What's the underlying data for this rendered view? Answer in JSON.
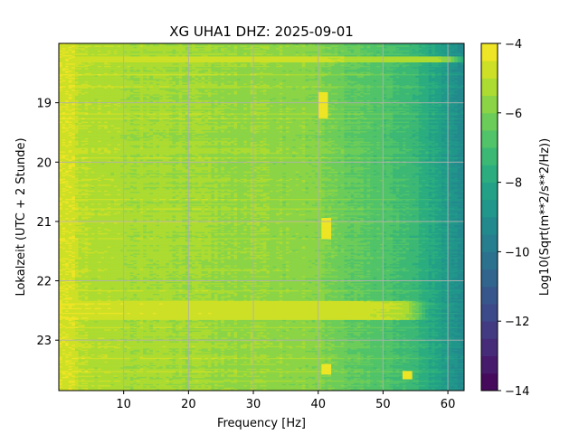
{
  "chart_data": {
    "type": "heatmap",
    "title": "XG UHA1  DHZ: 2025-09-01",
    "xlabel": "Frequency [Hz]",
    "ylabel": "Lokalzeit (UTC + 2 Stunde)",
    "xlim": [
      0.0,
      62.5
    ],
    "ylim": [
      23.85,
      18.0
    ],
    "xticks": [
      "10",
      "20",
      "30",
      "40",
      "50",
      "60"
    ],
    "yticks": [
      "19",
      "20",
      "21",
      "22",
      "23"
    ],
    "grid": true,
    "colorbar": {
      "label": "Log10(Sqrt(m**2/s**2/Hz))",
      "range": [
        -14,
        -4
      ],
      "ticks": [
        "−4",
        "−6",
        "−8",
        "−10",
        "−12",
        "−14"
      ],
      "levels": 20,
      "colormap": "viridis"
    },
    "background_profile": {
      "frequency_hz": [
        0,
        2,
        5,
        10,
        20,
        30,
        35,
        40,
        42,
        45,
        50,
        55,
        58,
        60,
        62.5
      ],
      "log_amplitude": [
        -4.7,
        -5.0,
        -5.2,
        -5.3,
        -5.5,
        -5.6,
        -5.7,
        -5.8,
        -6.2,
        -6.4,
        -6.8,
        -7.4,
        -8.1,
        -8.6,
        -9.3
      ]
    },
    "features": [
      {
        "kind": "broadband-band",
        "time_start": 22.35,
        "time_end": 22.65,
        "freq_end": 53,
        "log_amplitude": -4.4
      },
      {
        "kind": "broadband-band",
        "time_start": 18.22,
        "time_end": 18.32,
        "freq_end": 60,
        "log_amplitude": -4.6
      },
      {
        "kind": "narrow-line",
        "freq": 40.7,
        "time_start": 18.82,
        "time_end": 19.25,
        "log_amplitude": -4.2
      },
      {
        "kind": "narrow-line",
        "freq": 41.1,
        "time_start": 20.95,
        "time_end": 21.3,
        "log_amplitude": -4.2
      },
      {
        "kind": "narrow-line",
        "freq": 41.2,
        "time_start": 23.4,
        "time_end": 23.58,
        "log_amplitude": -4.3
      },
      {
        "kind": "narrow-line",
        "freq": 53.6,
        "time_start": 23.52,
        "time_end": 23.65,
        "log_amplitude": -4.4
      },
      {
        "kind": "low-frequency-edge",
        "freq_start": 0,
        "freq_end": 2.5,
        "log_amplitude": -4.6
      }
    ]
  },
  "colors": {
    "grid": "#b0b0b0",
    "axes": "#000000"
  }
}
